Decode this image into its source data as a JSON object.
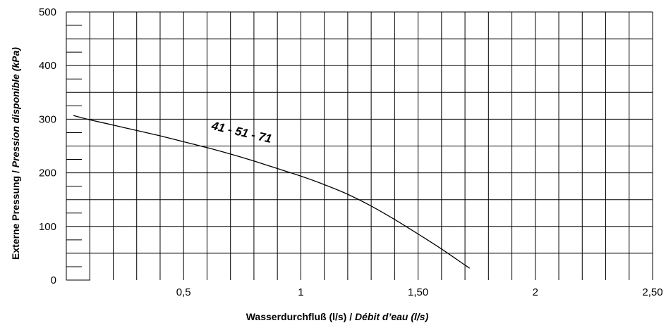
{
  "chart_data": {
    "type": "line",
    "title": "",
    "xlabel": "Wasserdurchfluß (l/s) / ",
    "xlabel_italic": "Débit d’eau (l/s)",
    "ylabel": "Externe Pressung / ",
    "ylabel_italic": "Pression disponible (kPa)",
    "xlim": [
      0,
      2.5
    ],
    "ylim": [
      0,
      500
    ],
    "x_ticks": [
      {
        "value": 0.5,
        "label": "0,5"
      },
      {
        "value": 1.0,
        "label": "1"
      },
      {
        "value": 1.5,
        "label": "1,50"
      },
      {
        "value": 2.0,
        "label": "2"
      },
      {
        "value": 2.5,
        "label": "2,50"
      }
    ],
    "y_ticks": [
      {
        "value": 0,
        "label": "0"
      },
      {
        "value": 100,
        "label": "100"
      },
      {
        "value": 200,
        "label": "200"
      },
      {
        "value": 300,
        "label": "300"
      },
      {
        "value": 400,
        "label": "400"
      },
      {
        "value": 500,
        "label": "500"
      }
    ],
    "grid": true,
    "x_grid_step": 0.1,
    "y_grid_step": 50,
    "series": [
      {
        "name": "41 - 51 - 71",
        "x": [
          0.03,
          0.1,
          0.2,
          0.3,
          0.4,
          0.5,
          0.6,
          0.7,
          0.8,
          0.9,
          1.0,
          1.1,
          1.2,
          1.3,
          1.4,
          1.5,
          1.6,
          1.7,
          1.72
        ],
        "y": [
          307,
          299,
          289,
          279,
          269,
          258,
          247,
          235,
          222,
          208,
          194,
          178,
          160,
          138,
          113,
          86,
          58,
          28,
          22
        ]
      }
    ]
  }
}
